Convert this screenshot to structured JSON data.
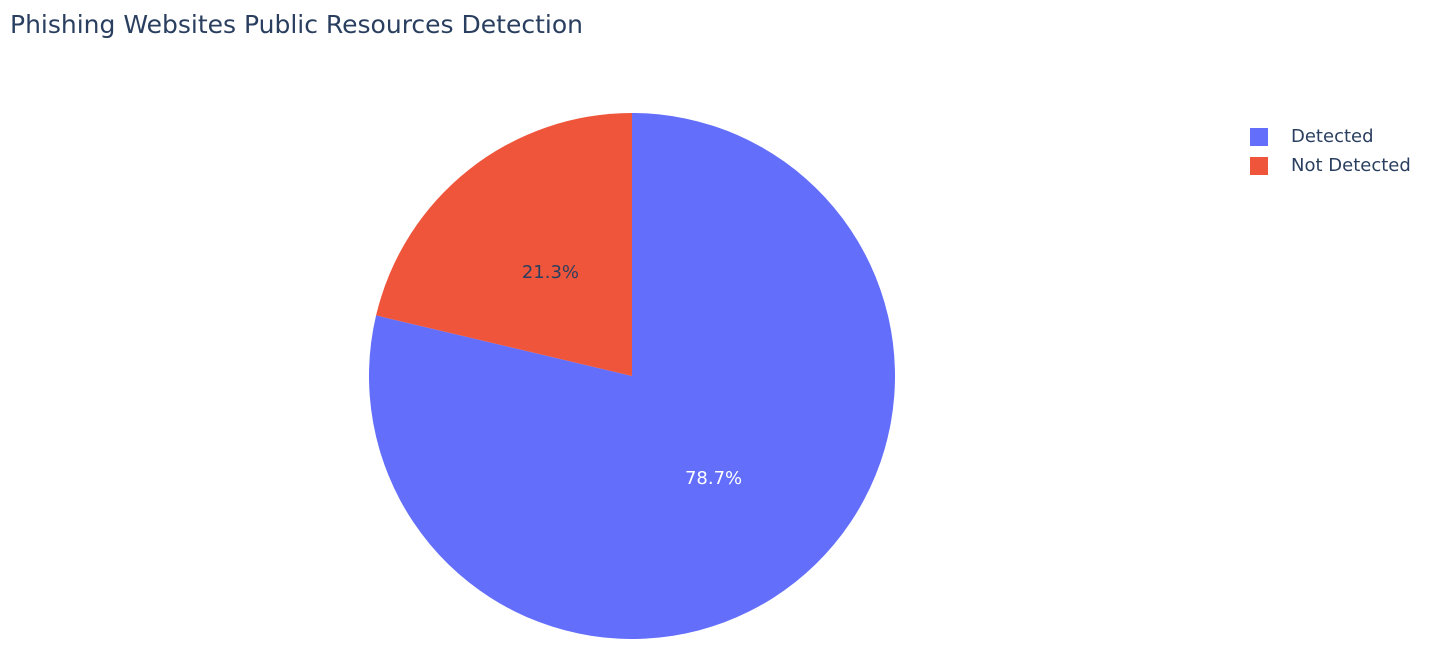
{
  "chart_data": {
    "type": "pie",
    "title": "Phishing Websites Public Resources Detection",
    "labels": [
      "Detected",
      "Not Detected"
    ],
    "values": [
      78.7,
      21.3
    ],
    "text_labels": [
      "78.7%",
      "21.3%"
    ],
    "colors": [
      "#636efa",
      "#ef553b"
    ],
    "text_colors": [
      "#ffffff",
      "#2a3f5f"
    ],
    "direction": "clockwise",
    "start_angle": "top",
    "legend_position": "top-right"
  }
}
